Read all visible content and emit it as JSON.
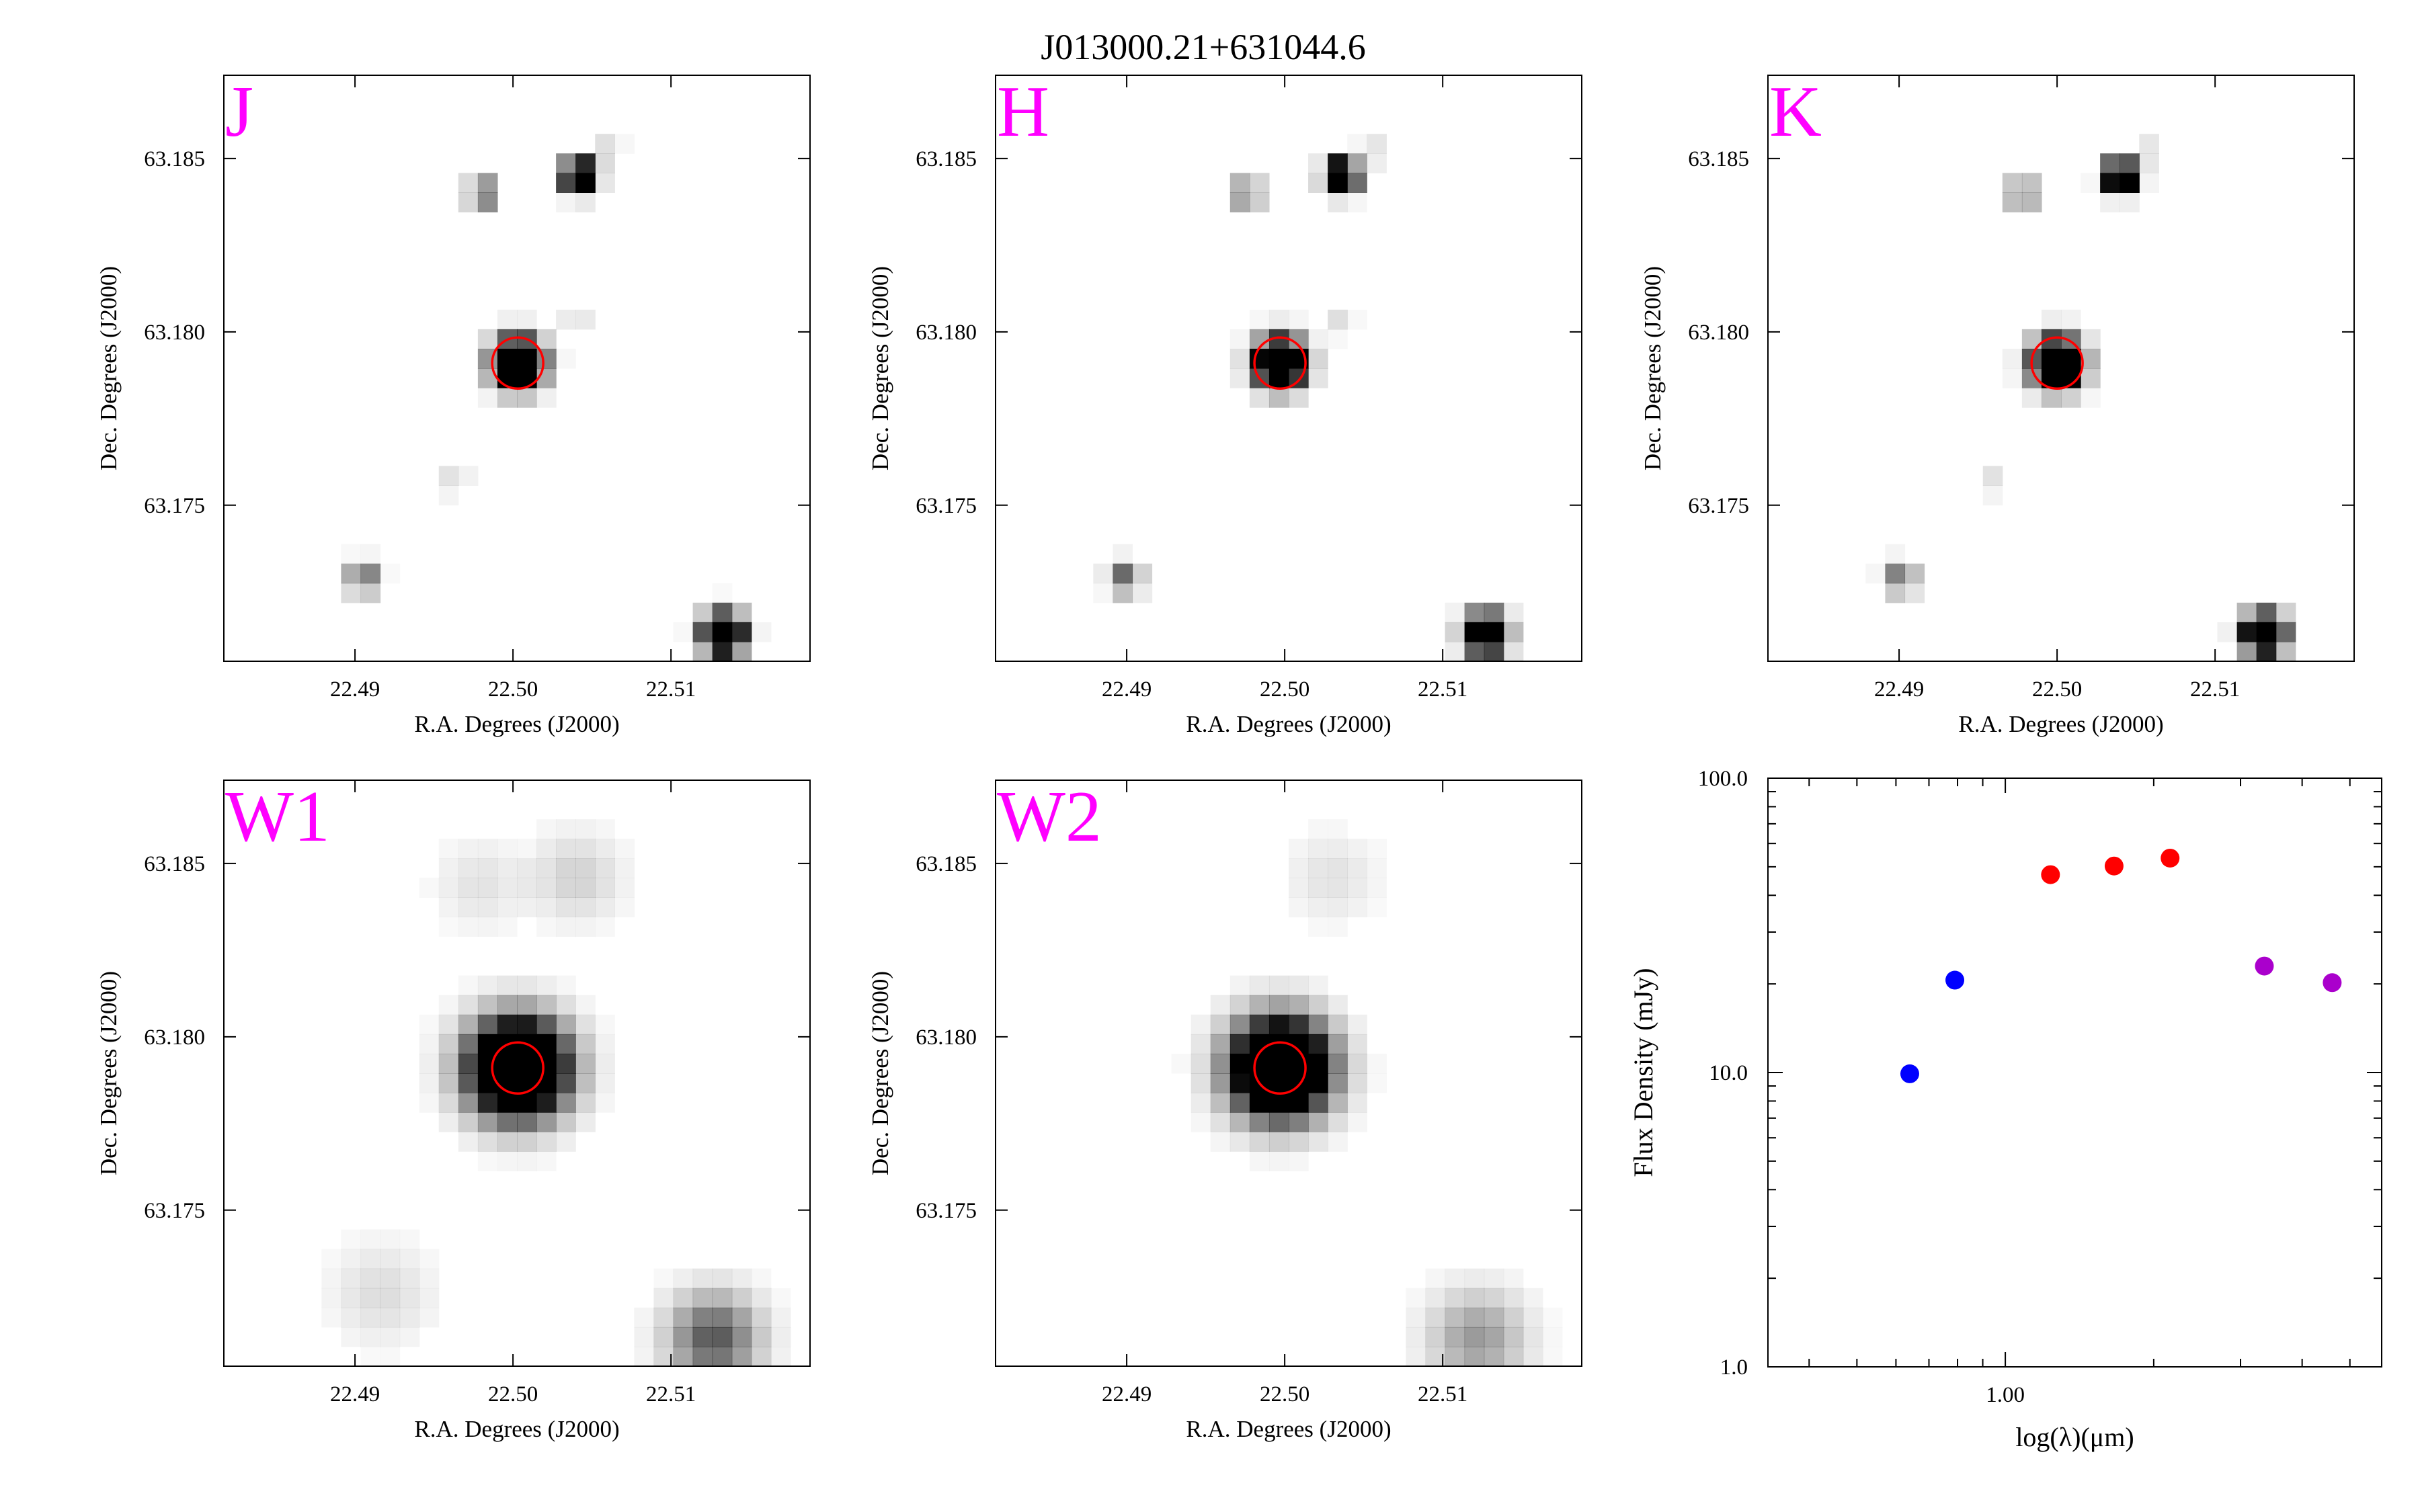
{
  "title": "J013000.21+631044.6",
  "colors": {
    "band_label": "#ff00ff",
    "aperture": "#ff0000",
    "source": "#000000",
    "sky": "#ffffff",
    "sed_optical": "#0000ff",
    "sed_2mass": "#ff0000",
    "sed_wise": "#aa00cc"
  },
  "cutout_axes": {
    "xlabel": "R.A. Degrees (J2000)",
    "ylabel": "Dec. Degrees (J2000)",
    "x_ticks": [
      "22.49",
      "22.50",
      "22.51"
    ],
    "y_ticks": [
      "63.185",
      "63.180",
      "63.175"
    ]
  },
  "panels": [
    {
      "band": "J",
      "show_xlabel": true
    },
    {
      "band": "H",
      "show_xlabel": true
    },
    {
      "band": "K",
      "show_xlabel": true
    },
    {
      "band": "W1",
      "show_xlabel": true
    },
    {
      "band": "W2",
      "show_xlabel": true
    }
  ],
  "chart_data": [
    {
      "type": "image",
      "panel": "J",
      "xlabel": "R.A. Degrees (J2000)",
      "ylabel": "Dec. Degrees (J2000)",
      "xlim": [
        22.4817,
        22.5188
      ],
      "ylim": [
        63.1705,
        63.1874
      ],
      "aperture_center": [
        22.5003,
        63.1791
      ],
      "sources": [
        {
          "ra": 22.5003,
          "dec": 63.1791,
          "intensity": 1.0,
          "width": 0.85
        },
        {
          "ra": 22.5042,
          "dec": 63.1845,
          "intensity": 0.9,
          "width": 0.55
        },
        {
          "ra": 22.4981,
          "dec": 63.184,
          "intensity": 0.35,
          "width": 0.5
        },
        {
          "ra": 22.5133,
          "dec": 63.1713,
          "intensity": 0.95,
          "width": 0.7
        },
        {
          "ra": 22.4905,
          "dec": 63.1729,
          "intensity": 0.3,
          "width": 0.55
        },
        {
          "ra": 22.506,
          "dec": 63.1852,
          "intensity": 0.08,
          "width": 0.5
        },
        {
          "ra": 22.504,
          "dec": 63.1803,
          "intensity": 0.06,
          "width": 0.5
        },
        {
          "ra": 22.4963,
          "dec": 63.1757,
          "intensity": 0.07,
          "width": 0.5
        }
      ]
    },
    {
      "type": "image",
      "panel": "H",
      "xlabel": "R.A. Degrees (J2000)",
      "ylabel": "Dec. Degrees (J2000)",
      "xlim": [
        22.4817,
        22.5188
      ],
      "ylim": [
        63.1705,
        63.1874
      ],
      "aperture_center": [
        22.4997,
        63.1791
      ],
      "sources": [
        {
          "ra": 22.4997,
          "dec": 63.1791,
          "intensity": 1.0,
          "width": 0.85
        },
        {
          "ra": 22.5036,
          "dec": 63.1845,
          "intensity": 0.9,
          "width": 0.55
        },
        {
          "ra": 22.4976,
          "dec": 63.184,
          "intensity": 0.3,
          "width": 0.5
        },
        {
          "ra": 22.5127,
          "dec": 63.1713,
          "intensity": 0.95,
          "width": 0.7
        },
        {
          "ra": 22.4899,
          "dec": 63.1729,
          "intensity": 0.3,
          "width": 0.55
        },
        {
          "ra": 22.5055,
          "dec": 63.1852,
          "intensity": 0.07,
          "width": 0.5
        },
        {
          "ra": 22.5035,
          "dec": 63.1803,
          "intensity": 0.06,
          "width": 0.5
        }
      ]
    },
    {
      "type": "image",
      "panel": "K",
      "xlabel": "R.A. Degrees (J2000)",
      "ylabel": "Dec. Degrees (J2000)",
      "xlim": [
        22.4817,
        22.5188
      ],
      "ylim": [
        63.1705,
        63.1874
      ],
      "aperture_center": [
        22.5,
        63.1791
      ],
      "sources": [
        {
          "ra": 22.5,
          "dec": 63.1791,
          "intensity": 1.0,
          "width": 0.85
        },
        {
          "ra": 22.504,
          "dec": 63.1845,
          "intensity": 0.85,
          "width": 0.55
        },
        {
          "ra": 22.4978,
          "dec": 63.184,
          "intensity": 0.3,
          "width": 0.5
        },
        {
          "ra": 22.5131,
          "dec": 63.1713,
          "intensity": 0.95,
          "width": 0.7
        },
        {
          "ra": 22.4901,
          "dec": 63.1729,
          "intensity": 0.28,
          "width": 0.55
        },
        {
          "ra": 22.5058,
          "dec": 63.1852,
          "intensity": 0.06,
          "width": 0.5
        },
        {
          "ra": 22.496,
          "dec": 63.1757,
          "intensity": 0.06,
          "width": 0.5
        }
      ]
    },
    {
      "type": "image",
      "panel": "W1",
      "xlabel": "R.A. Degrees (J2000)",
      "ylabel": "Dec. Degrees (J2000)",
      "xlim": [
        22.4817,
        22.5188
      ],
      "ylim": [
        63.1705,
        63.1874
      ],
      "aperture_center": [
        22.5003,
        63.1791
      ],
      "sources": [
        {
          "ra": 22.5003,
          "dec": 63.1791,
          "intensity": 1.0,
          "width": 1.7
        },
        {
          "ra": 22.504,
          "dec": 63.1846,
          "intensity": 0.08,
          "width": 1.6
        },
        {
          "ra": 22.498,
          "dec": 63.1844,
          "intensity": 0.05,
          "width": 1.6
        },
        {
          "ra": 22.5127,
          "dec": 63.1713,
          "intensity": 0.3,
          "width": 1.6
        },
        {
          "ra": 22.4917,
          "dec": 63.1726,
          "intensity": 0.06,
          "width": 1.8
        }
      ]
    },
    {
      "type": "image",
      "panel": "W2",
      "xlabel": "R.A. Degrees (J2000)",
      "ylabel": "Dec. Degrees (J2000)",
      "xlim": [
        22.4817,
        22.5188
      ],
      "ylim": [
        63.1705,
        63.1874
      ],
      "aperture_center": [
        22.4997,
        63.1791
      ],
      "sources": [
        {
          "ra": 22.4997,
          "dec": 63.1791,
          "intensity": 1.0,
          "width": 1.7
        },
        {
          "ra": 22.503,
          "dec": 63.1846,
          "intensity": 0.05,
          "width": 1.6
        },
        {
          "ra": 22.5122,
          "dec": 63.1713,
          "intensity": 0.18,
          "width": 1.7
        }
      ]
    },
    {
      "type": "scatter",
      "panel": "SED",
      "xlabel": "log(λ)(μm)",
      "ylabel": "Flux Density (mJy)",
      "xscale": "log",
      "yscale": "log",
      "xlim": [
        0.33,
        5.8
      ],
      "ylim": [
        1.0,
        100.0
      ],
      "x_ticks": [
        "1.00"
      ],
      "y_ticks": [
        "100.0",
        "10.0",
        "1.0"
      ],
      "series": [
        {
          "color": "#0000ff",
          "x": [
            0.64,
            0.79
          ],
          "y": [
            9.9,
            20.6
          ]
        },
        {
          "color": "#ff0000",
          "x": [
            1.235,
            1.662,
            2.159
          ],
          "y": [
            47.0,
            50.3,
            53.5
          ]
        },
        {
          "color": "#aa00cc",
          "x": [
            3.353,
            4.603
          ],
          "y": [
            23.0,
            20.2
          ]
        }
      ]
    }
  ]
}
